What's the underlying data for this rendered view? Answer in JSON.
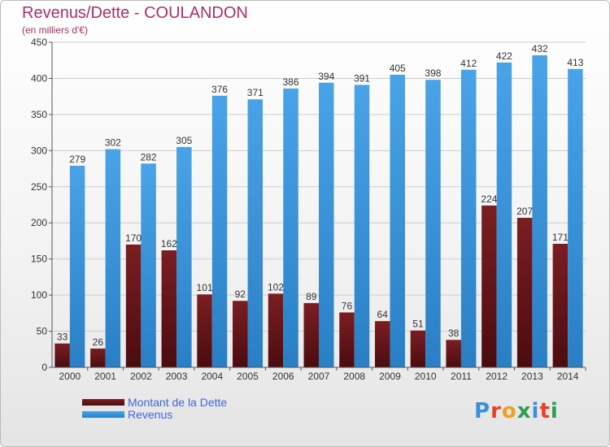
{
  "header": {
    "title": "Revenus/Dette - COULANDON",
    "subtitle": "(en milliers d'€)"
  },
  "logo": {
    "text": "Proxiti",
    "colors": [
      "#3a8fd8",
      "#e8402a",
      "#f0a020",
      "#2aa050",
      "#3a8fd8",
      "#e8402a",
      "#2aa050"
    ]
  },
  "colors": {
    "dette": "#7a1e22",
    "dette_dark": "#4a0c10",
    "revenus": "#4aa3e6",
    "revenus_dark": "#2a7fc4",
    "grid": "#cccccc"
  },
  "chart_data": {
    "type": "bar",
    "title": "Revenus/Dette - COULANDON",
    "subtitle": "(en milliers d'€)",
    "categories": [
      "2000",
      "2001",
      "2002",
      "2003",
      "2004",
      "2005",
      "2006",
      "2007",
      "2008",
      "2009",
      "2010",
      "2011",
      "2012",
      "2013",
      "2014"
    ],
    "series": [
      {
        "name": "Montant de la Dette",
        "values": [
          33,
          26,
          170,
          162,
          101,
          92,
          102,
          89,
          76,
          64,
          51,
          38,
          224,
          207,
          171
        ]
      },
      {
        "name": "Revenus",
        "values": [
          279,
          302,
          282,
          305,
          376,
          371,
          386,
          394,
          391,
          405,
          398,
          412,
          422,
          432,
          413
        ]
      }
    ],
    "ylim": [
      0,
      450
    ],
    "yticks": [
      0,
      50,
      100,
      150,
      200,
      250,
      300,
      350,
      400,
      450
    ],
    "grid": true,
    "legend": "bottom-left"
  }
}
